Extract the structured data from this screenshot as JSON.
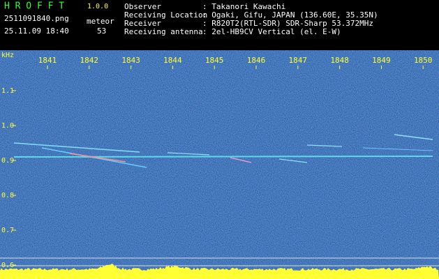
{
  "header": {
    "app_name": "H R O F F T",
    "version": "1.0.0",
    "file_name": "2511091840.png",
    "count_label": "meteor",
    "timestamp": "25.11.09 18:40",
    "count": "53"
  },
  "station": {
    "rows": [
      {
        "label": "Observer",
        "value": ": Takanori Kawachi"
      },
      {
        "label": "Receiving Location",
        "value": ": Ogaki, Gifu, JAPAN (136.60E, 35.35N)"
      },
      {
        "label": "Receiver",
        "value": ": R820T2(RTL-SDR) SDR-Sharp 53.372MHz"
      },
      {
        "label": "Receiving antenna",
        "value": ": 2el-HB9CV Vertical (el. E-W)"
      }
    ]
  },
  "spectrogram": {
    "y_unit": "kHz",
    "x_labels": [
      "1841",
      "1842",
      "1843",
      "1844",
      "1845",
      "1846",
      "1847",
      "1848",
      "1849",
      "1850"
    ],
    "y_labels": [
      "1.1",
      "1.0",
      "0.9",
      "0.8",
      "0.7",
      "0.6"
    ]
  }
}
